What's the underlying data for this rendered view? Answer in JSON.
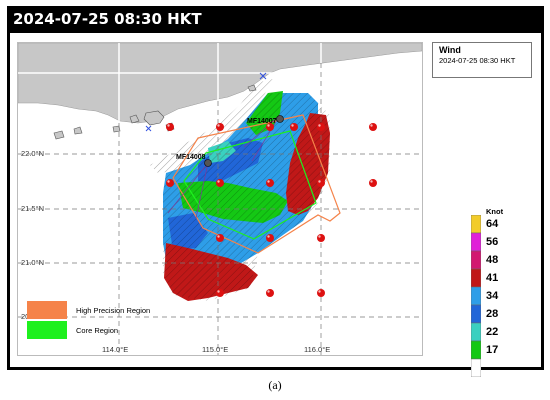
{
  "header": {
    "title": "2024-07-25 08:30 HKT"
  },
  "legend": {
    "title": "Wind",
    "time": "2024-07-25 08:30 HKT"
  },
  "colorbar": {
    "unit": "Knot",
    "levels": [
      {
        "label": "64",
        "color": "#f2cc2a"
      },
      {
        "label": "56",
        "color": "#e020d8"
      },
      {
        "label": "48",
        "color": "#d21870"
      },
      {
        "label": "41",
        "color": "#c01818"
      },
      {
        "label": "34",
        "color": "#2e9ee8"
      },
      {
        "label": "28",
        "color": "#2166d8"
      },
      {
        "label": "22",
        "color": "#3ad0c0"
      },
      {
        "label": "17",
        "color": "#14c814"
      },
      {
        "label": "",
        "color": "#ffffff"
      }
    ]
  },
  "axes": {
    "lat_ticks": [
      "22.0°N",
      "21.5°N",
      "21.0°N",
      "20.5°N"
    ],
    "lon_ticks": [
      "114.0°E",
      "115.0°E",
      "116.0°E"
    ]
  },
  "stations": [
    {
      "label": "MF14007"
    },
    {
      "label": "MF14008"
    }
  ],
  "regions": [
    {
      "label": "High Precision Region",
      "color": "#f5834a"
    },
    {
      "label": "Core Region",
      "color": "#1ef01e"
    }
  ],
  "caption": "(a)"
}
